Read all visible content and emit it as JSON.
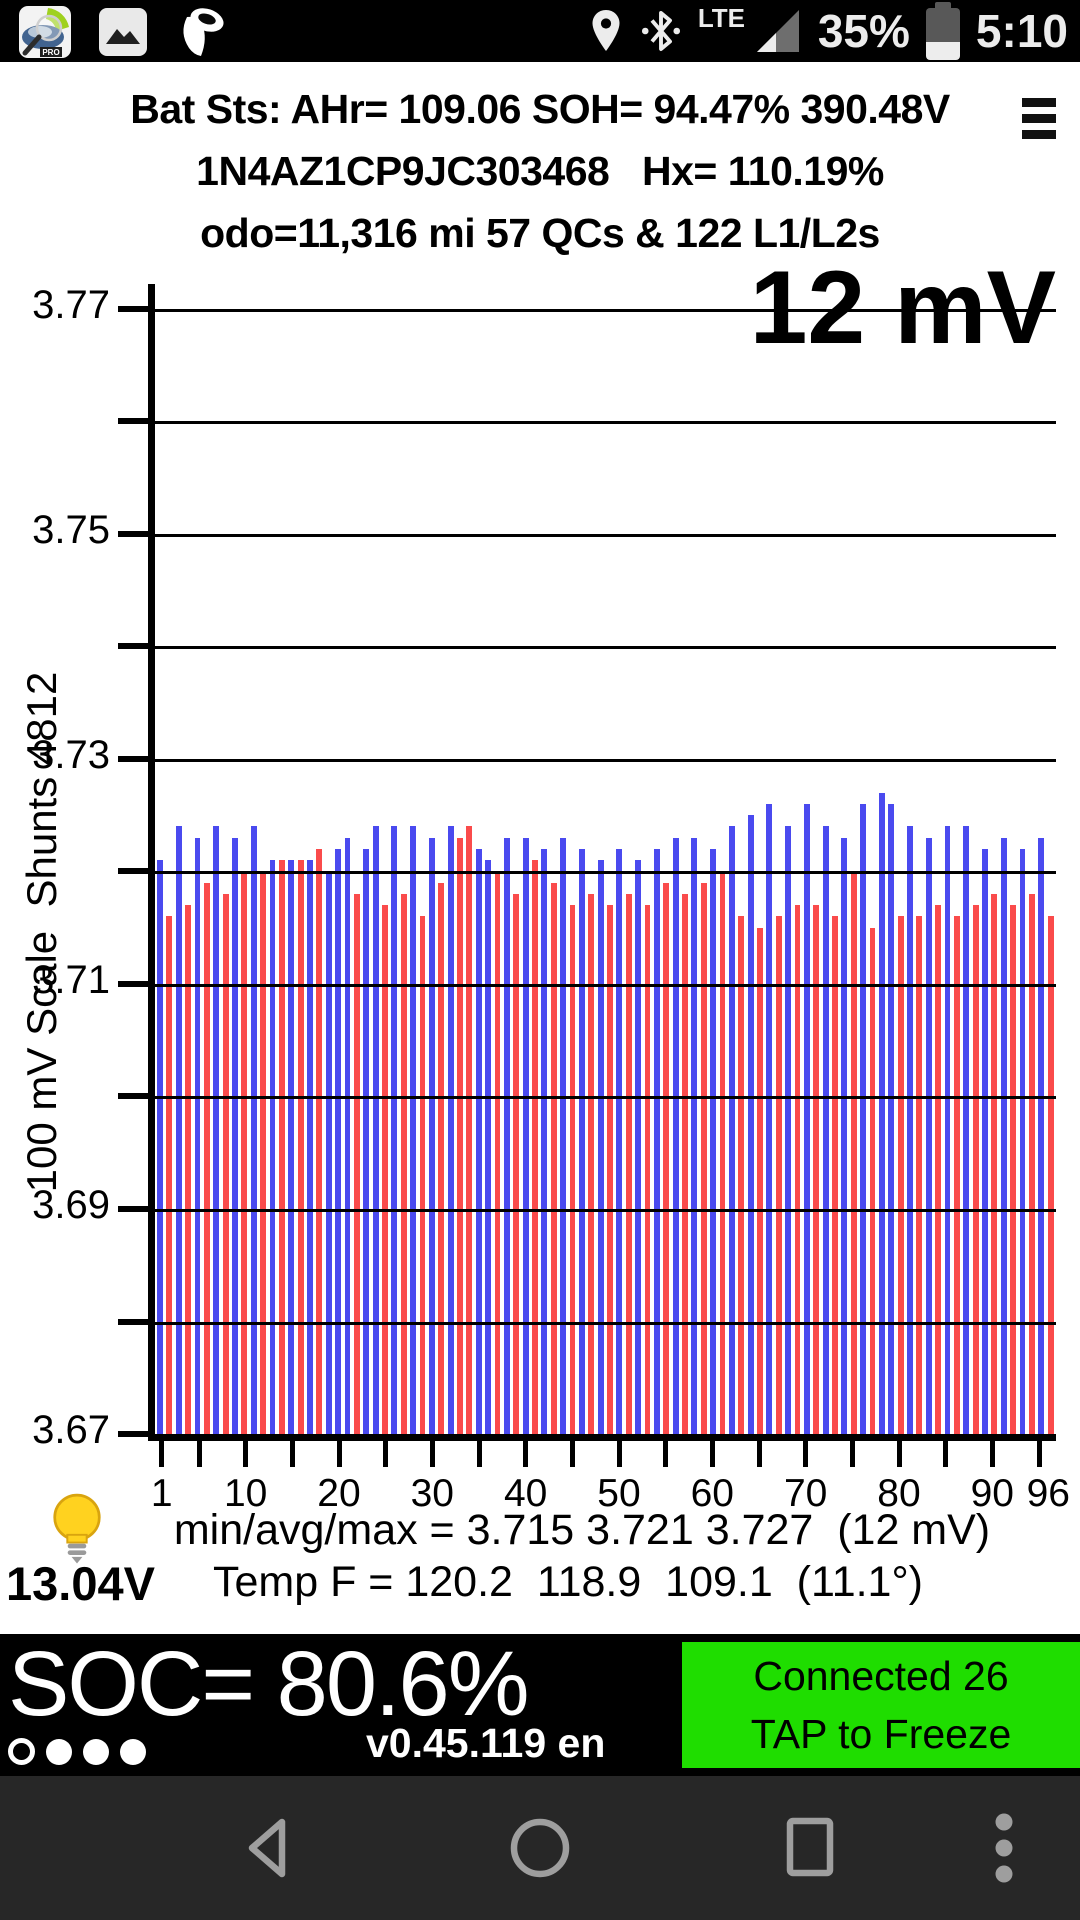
{
  "status_bar": {
    "time": "5:10",
    "battery_text": "35%",
    "network_label": "LTE"
  },
  "header": {
    "line1": "Bat Sts: AHr= 109.06 SOH= 94.47% 390.48V",
    "line2": "1N4AZ1CP9JC303468   Hx= 110.19%",
    "line3": "odo=11,316 mi 57 QCs & 122 L1/L2s"
  },
  "chart_data": {
    "type": "bar",
    "title": "12 mV",
    "ylabel": "100 mV Scale  Shunts 4812",
    "ylim": [
      3.67,
      3.77
    ],
    "y_axis_labels": [
      "3.77",
      "3.75",
      "3.73",
      "3.71",
      "3.69",
      "3.67"
    ],
    "y_tick_step": 0.01,
    "x_labels": [
      1,
      10,
      20,
      30,
      40,
      50,
      60,
      70,
      80,
      90,
      96
    ],
    "x_tick_step": 5,
    "bar_color": "#4a4aef",
    "shunt_color": "#fa4b4b",
    "cells": [
      [
        3.721,
        0
      ],
      [
        3.716,
        1
      ],
      [
        3.724,
        0
      ],
      [
        3.717,
        1
      ],
      [
        3.723,
        0
      ],
      [
        3.719,
        1
      ],
      [
        3.724,
        0
      ],
      [
        3.718,
        1
      ],
      [
        3.723,
        0
      ],
      [
        3.72,
        1
      ],
      [
        3.724,
        0
      ],
      [
        3.72,
        1
      ],
      [
        3.721,
        0
      ],
      [
        3.721,
        1
      ],
      [
        3.721,
        0
      ],
      [
        3.721,
        1
      ],
      [
        3.721,
        0
      ],
      [
        3.722,
        1
      ],
      [
        3.72,
        0
      ],
      [
        3.722,
        0
      ],
      [
        3.723,
        0
      ],
      [
        3.718,
        1
      ],
      [
        3.722,
        0
      ],
      [
        3.724,
        0
      ],
      [
        3.717,
        1
      ],
      [
        3.724,
        0
      ],
      [
        3.718,
        1
      ],
      [
        3.724,
        0
      ],
      [
        3.716,
        1
      ],
      [
        3.723,
        0
      ],
      [
        3.719,
        1
      ],
      [
        3.724,
        0
      ],
      [
        3.723,
        1
      ],
      [
        3.724,
        1
      ],
      [
        3.722,
        0
      ],
      [
        3.721,
        0
      ],
      [
        3.72,
        1
      ],
      [
        3.723,
        0
      ],
      [
        3.718,
        1
      ],
      [
        3.723,
        0
      ],
      [
        3.721,
        1
      ],
      [
        3.722,
        0
      ],
      [
        3.719,
        1
      ],
      [
        3.723,
        0
      ],
      [
        3.717,
        1
      ],
      [
        3.722,
        0
      ],
      [
        3.718,
        1
      ],
      [
        3.721,
        0
      ],
      [
        3.717,
        1
      ],
      [
        3.722,
        0
      ],
      [
        3.718,
        1
      ],
      [
        3.721,
        0
      ],
      [
        3.717,
        1
      ],
      [
        3.722,
        0
      ],
      [
        3.719,
        1
      ],
      [
        3.723,
        0
      ],
      [
        3.718,
        1
      ],
      [
        3.723,
        0
      ],
      [
        3.719,
        1
      ],
      [
        3.722,
        0
      ],
      [
        3.72,
        1
      ],
      [
        3.724,
        0
      ],
      [
        3.716,
        1
      ],
      [
        3.725,
        0
      ],
      [
        3.715,
        1
      ],
      [
        3.726,
        0
      ],
      [
        3.716,
        1
      ],
      [
        3.724,
        0
      ],
      [
        3.717,
        1
      ],
      [
        3.726,
        0
      ],
      [
        3.717,
        1
      ],
      [
        3.724,
        0
      ],
      [
        3.716,
        1
      ],
      [
        3.723,
        0
      ],
      [
        3.72,
        1
      ],
      [
        3.726,
        0
      ],
      [
        3.715,
        1
      ],
      [
        3.727,
        0
      ],
      [
        3.726,
        0
      ],
      [
        3.716,
        1
      ],
      [
        3.724,
        0
      ],
      [
        3.716,
        1
      ],
      [
        3.723,
        0
      ],
      [
        3.717,
        1
      ],
      [
        3.724,
        0
      ],
      [
        3.716,
        1
      ],
      [
        3.724,
        0
      ],
      [
        3.717,
        1
      ],
      [
        3.722,
        0
      ],
      [
        3.718,
        1
      ],
      [
        3.723,
        0
      ],
      [
        3.717,
        1
      ],
      [
        3.722,
        0
      ],
      [
        3.718,
        1
      ],
      [
        3.723,
        0
      ],
      [
        3.716,
        1
      ]
    ]
  },
  "summary": {
    "min_avg_max": "min/avg/max = 3.715 3.721 3.727  (12 mV)",
    "aux_battery": "13.04V",
    "temperature": "Temp F = 120.2  118.9  109.1  (11.1°)"
  },
  "soc_bar": {
    "soc": "SOC= 80.6%",
    "version": "v0.45.119 en",
    "connect_button": {
      "line1": "Connected 26",
      "line2": "TAP to Freeze",
      "color": "#1fdd00"
    },
    "page_dots": [
      "hollow",
      "filled",
      "filled",
      "filled"
    ]
  }
}
